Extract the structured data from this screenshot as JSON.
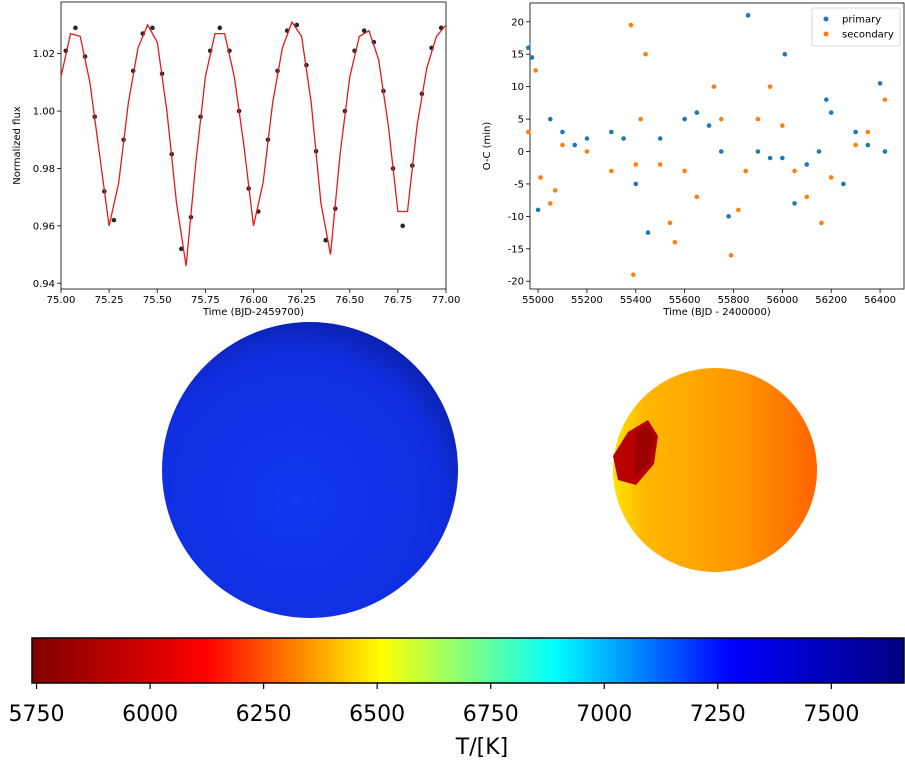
{
  "chart_data": [
    {
      "type": "scatter",
      "xlabel": "Time (BJD-2459700)",
      "ylabel": "Normalized flux",
      "xlim": [
        75.0,
        77.0
      ],
      "ylim": [
        0.938,
        1.038
      ],
      "xticks": [
        {
          "value": 75.0,
          "label": "75.00"
        },
        75.25,
        {
          "value": 75.5,
          "label": "75.50"
        },
        75.75,
        {
          "value": 76.0,
          "label": "76.00"
        },
        76.25,
        {
          "value": 76.5,
          "label": "76.50"
        },
        76.75,
        {
          "value": 77.0,
          "label": "77.00"
        }
      ],
      "yticks": [
        0.94,
        0.96,
        0.98,
        {
          "value": 1.0,
          "label": "1.00"
        },
        1.02
      ],
      "series": [
        {
          "style": "points",
          "color": "#1f2a38",
          "x": [
            75.025,
            75.075,
            75.125,
            75.175,
            75.225,
            75.275,
            75.325,
            75.375,
            75.425,
            75.475,
            75.525,
            75.575,
            75.625,
            75.675,
            75.725,
            75.775,
            75.825,
            75.875,
            75.925,
            75.975,
            76.025,
            76.075,
            76.125,
            76.175,
            76.225,
            76.275,
            76.325,
            76.375,
            76.425,
            76.475,
            76.525,
            76.575,
            76.625,
            76.675,
            76.725,
            76.775,
            76.825,
            76.875,
            76.925,
            76.975
          ],
          "values": [
            1.021,
            1.029,
            1.019,
            0.998,
            0.972,
            0.962,
            0.99,
            1.014,
            1.027,
            1.029,
            1.013,
            0.985,
            0.952,
            0.963,
            0.998,
            1.021,
            1.029,
            1.021,
            1.0,
            0.973,
            0.965,
            0.99,
            1.014,
            1.028,
            1.03,
            1.016,
            0.986,
            0.955,
            0.966,
            1.0,
            1.021,
            1.028,
            1.024,
            1.007,
            0.98,
            0.96,
            0.981,
            1.006,
            1.022,
            1.029
          ]
        },
        {
          "style": "line",
          "color": "#e41a1c",
          "x": [
            75.0,
            75.05,
            75.1,
            75.15,
            75.2,
            75.25,
            75.3,
            75.35,
            75.4,
            75.45,
            75.5,
            75.55,
            75.6,
            75.65,
            75.7,
            75.75,
            75.8,
            75.85,
            75.9,
            75.95,
            76.0,
            76.05,
            76.1,
            76.15,
            76.2,
            76.25,
            76.3,
            76.35,
            76.4,
            76.45,
            76.5,
            76.55,
            76.6,
            76.65,
            76.7,
            76.75,
            76.8,
            76.85,
            76.9,
            76.95,
            77.0
          ],
          "values": [
            1.012,
            1.027,
            1.026,
            1.01,
            0.985,
            0.96,
            0.975,
            1.003,
            1.022,
            1.03,
            1.024,
            1.0,
            0.968,
            0.946,
            0.982,
            1.012,
            1.027,
            1.027,
            1.012,
            0.988,
            0.96,
            0.975,
            1.003,
            1.022,
            1.031,
            1.026,
            1.003,
            0.968,
            0.95,
            0.985,
            1.012,
            1.026,
            1.028,
            1.018,
            0.995,
            0.965,
            0.965,
            0.995,
            1.015,
            1.026,
            1.03
          ]
        }
      ]
    },
    {
      "type": "scatter",
      "xlabel": "Time (BJD - 2400000)",
      "ylabel": "O-C (min)",
      "xlim": [
        54967,
        56498
      ],
      "ylim": [
        -21.2,
        22.9
      ],
      "xticks": [
        55000,
        55200,
        55400,
        55600,
        55800,
        56000,
        56200,
        56400
      ],
      "yticks": [
        -20,
        -15,
        -10,
        -5,
        0,
        5,
        10,
        15,
        20
      ],
      "legend": "upper right",
      "series": [
        {
          "name": "primary",
          "style": "points",
          "color": "#1f77b4",
          "x": [
            54960,
            54975,
            55000,
            55050,
            55100,
            55150,
            55200,
            55300,
            55350,
            55400,
            55450,
            55500,
            55600,
            55650,
            55700,
            55750,
            55780,
            55860,
            55900,
            55950,
            56000,
            56010,
            56050,
            56100,
            56150,
            56180,
            56200,
            56250,
            56300,
            56350,
            56400,
            56420
          ],
          "values": [
            16,
            14.5,
            -9,
            5,
            3,
            1,
            2,
            3,
            2,
            -5,
            -12.5,
            2,
            5,
            6,
            4,
            0,
            -10,
            21,
            0,
            -1,
            -1,
            15,
            -8,
            -2,
            0,
            8,
            6,
            -5,
            3,
            1,
            10.5,
            0
          ]
        },
        {
          "name": "secondary",
          "style": "points",
          "color": "#ff7f0e",
          "x": [
            54960,
            54990,
            55010,
            55050,
            55070,
            55100,
            55200,
            55300,
            55380,
            55390,
            55400,
            55420,
            55440,
            55500,
            55540,
            55560,
            55600,
            55650,
            55720,
            55750,
            55790,
            55820,
            55850,
            55900,
            55950,
            56000,
            56050,
            56100,
            56160,
            56200,
            56300,
            56350,
            56420
          ],
          "values": [
            3,
            12.5,
            -4,
            -8,
            -6,
            1,
            0,
            -3,
            19.5,
            -19,
            -2,
            5,
            15,
            -2,
            -11,
            -14,
            -3,
            -7,
            10,
            5,
            -16,
            -9,
            -3,
            5,
            10,
            4,
            -3,
            -7,
            -11,
            -4,
            1,
            3,
            8
          ]
        }
      ]
    },
    {
      "type": "colorbar",
      "xlabel": "T/[K]",
      "xlim": [
        5740,
        7660
      ],
      "xticks": [
        5750,
        6000,
        6250,
        6500,
        6750,
        7000,
        7250,
        7500
      ],
      "colors": [
        "#800000",
        "#ff0000",
        "#ffff00",
        "#00ffff",
        "#0000ff",
        "#000080"
      ]
    }
  ]
}
